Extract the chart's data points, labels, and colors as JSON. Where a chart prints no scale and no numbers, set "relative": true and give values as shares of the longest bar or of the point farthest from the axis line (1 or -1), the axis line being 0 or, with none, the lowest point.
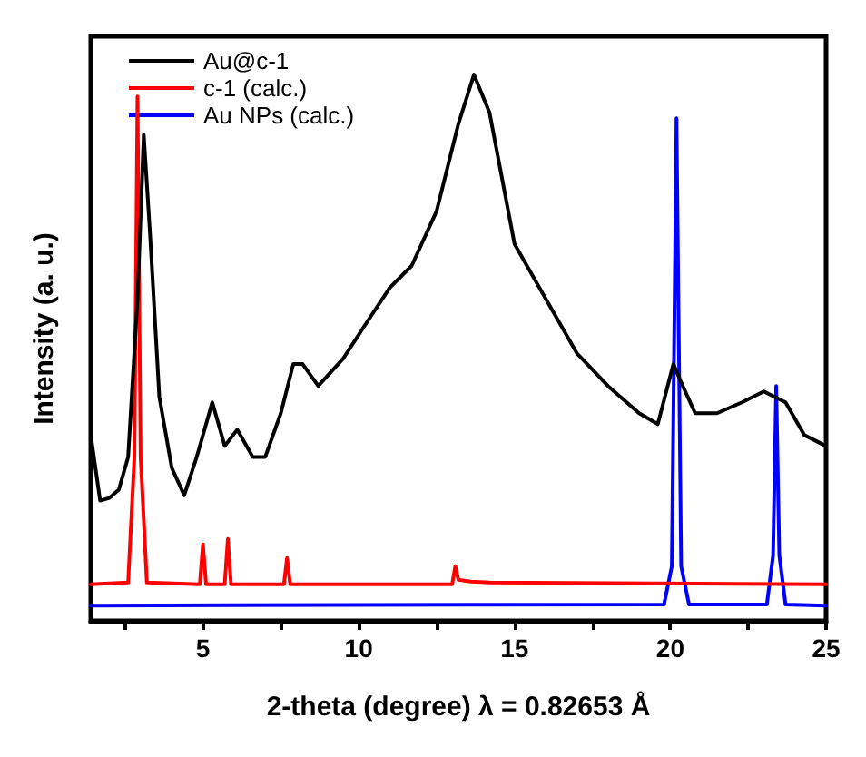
{
  "chart_data": {
    "type": "line",
    "relative": true,
    "xlabel": "2-theta (degree) λ = 0.82653 Å",
    "ylabel": "Intensity (a. u.)",
    "xlim": [
      1.4,
      25
    ],
    "xticks": [
      {
        "value": 2.5,
        "label": null
      },
      5,
      {
        "value": 7.5,
        "label": null
      },
      10,
      {
        "value": 12.5,
        "label": null
      },
      15,
      {
        "value": 17.5,
        "label": null
      },
      20,
      {
        "value": 22.5,
        "label": null
      },
      25
    ],
    "legend": "top left",
    "grid": false,
    "marker": "none",
    "line_style": "solid",
    "series": [
      {
        "name": "Au@c-1",
        "color": "#000000",
        "x": [
          1.4,
          1.7,
          2.0,
          2.3,
          2.6,
          2.9,
          3.1,
          3.3,
          3.6,
          4.0,
          4.4,
          4.8,
          5.3,
          5.7,
          6.1,
          6.6,
          7.0,
          7.5,
          7.9,
          8.2,
          8.7,
          9.5,
          10.3,
          11.0,
          11.7,
          12.5,
          13.2,
          13.7,
          14.2,
          15.0,
          16.0,
          17.0,
          18.0,
          19.0,
          19.6,
          20.1,
          20.4,
          20.8,
          21.5,
          22.3,
          23.0,
          23.7,
          24.3,
          25
        ],
        "values": [
          0.34,
          0.22,
          0.225,
          0.24,
          0.3,
          0.59,
          0.89,
          0.71,
          0.41,
          0.28,
          0.23,
          0.3,
          0.4,
          0.32,
          0.35,
          0.3,
          0.3,
          0.38,
          0.47,
          0.47,
          0.43,
          0.48,
          0.55,
          0.61,
          0.65,
          0.75,
          0.91,
          1.0,
          0.93,
          0.69,
          0.59,
          0.49,
          0.43,
          0.38,
          0.36,
          0.47,
          0.43,
          0.38,
          0.38,
          0.4,
          0.42,
          0.4,
          0.34,
          0.32
        ]
      },
      {
        "name": "c-1 (calc.)",
        "color": "#ff0000",
        "x": [
          1.4,
          2.6,
          2.8,
          2.9,
          3.0,
          3.2,
          4.9,
          5.0,
          5.1,
          5.7,
          5.8,
          5.9,
          7.6,
          7.7,
          7.8,
          13.0,
          13.1,
          13.2,
          13.6,
          14.2,
          25
        ],
        "values": [
          0.067,
          0.07,
          0.3,
          0.96,
          0.3,
          0.07,
          0.067,
          0.14,
          0.067,
          0.067,
          0.15,
          0.067,
          0.067,
          0.115,
          0.067,
          0.067,
          0.1,
          0.075,
          0.072,
          0.07,
          0.067
        ]
      },
      {
        "name": "Au NPs (calc.)",
        "color": "#0000ff",
        "x": [
          1.4,
          19.8,
          20.05,
          20.2,
          20.35,
          20.6,
          23.1,
          23.3,
          23.4,
          23.5,
          23.7,
          25
        ],
        "values": [
          0.028,
          0.03,
          0.1,
          0.92,
          0.1,
          0.03,
          0.03,
          0.12,
          0.43,
          0.12,
          0.03,
          0.028
        ]
      }
    ]
  }
}
